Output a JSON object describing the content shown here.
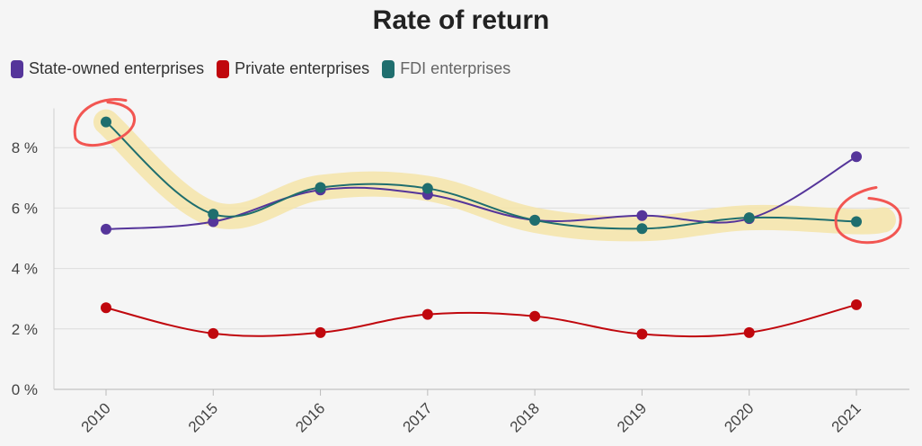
{
  "chart_data": {
    "type": "line",
    "title": "Rate of return",
    "categories": [
      "2010",
      "2015",
      "2016",
      "2017",
      "2018",
      "2019",
      "2020",
      "2021"
    ],
    "y_ticks": [
      "0 %",
      "2 %",
      "4 %",
      "6 %",
      "8 %"
    ],
    "ylim": [
      0,
      9
    ],
    "grid": "horizontal",
    "legend_position": "top-left",
    "series": [
      {
        "name": "State-owned enterprises",
        "color": "#55359a",
        "values": [
          5.3,
          5.55,
          6.6,
          6.45,
          5.6,
          5.75,
          5.65,
          7.7
        ]
      },
      {
        "name": "Private enterprises",
        "color": "#c0070d",
        "values": [
          2.7,
          1.85,
          1.88,
          2.48,
          2.42,
          1.83,
          1.88,
          2.8
        ]
      },
      {
        "name": "FDI enterprises",
        "color": "#1f6e6e",
        "values": [
          8.85,
          5.8,
          6.68,
          6.65,
          5.6,
          5.32,
          5.68,
          5.55
        ]
      }
    ],
    "annotations": {
      "highlight_band_color": "#f5e4a8",
      "circle_marks_color": "#f25652",
      "circled_points": [
        "2010",
        "2021"
      ]
    }
  }
}
